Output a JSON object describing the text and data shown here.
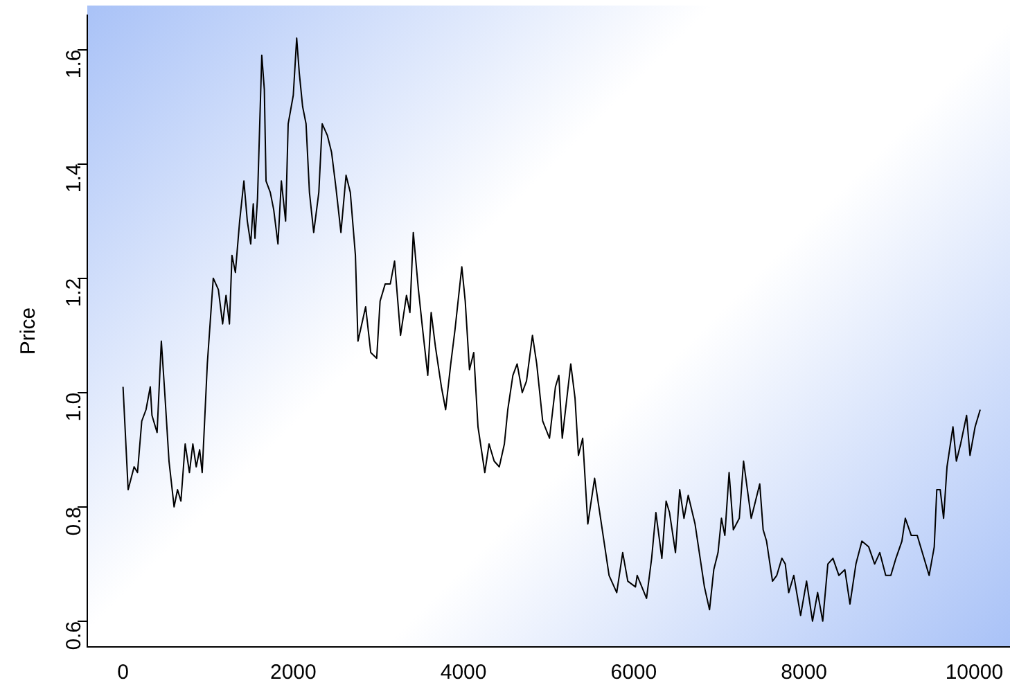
{
  "chart_data": {
    "type": "line",
    "ylabel": "Price",
    "xlim": [
      -420,
      10420
    ],
    "ylim": [
      0.555,
      1.66
    ],
    "xticks": [
      0,
      2000,
      4000,
      6000,
      8000,
      10000
    ],
    "yticks": [
      0.6,
      0.8,
      {
        "value": 1,
        "label": "1.0"
      },
      1.2,
      1.4,
      1.6
    ],
    "grid": false,
    "legend": false,
    "marker": "none",
    "line_style": "solid",
    "x": [
      0,
      60,
      130,
      170,
      220,
      270,
      320,
      340,
      400,
      450,
      490,
      540,
      600,
      640,
      680,
      730,
      780,
      820,
      860,
      900,
      930,
      990,
      1060,
      1120,
      1170,
      1210,
      1250,
      1280,
      1320,
      1370,
      1420,
      1460,
      1500,
      1530,
      1550,
      1580,
      1630,
      1660,
      1680,
      1730,
      1770,
      1820,
      1860,
      1910,
      1940,
      2000,
      2040,
      2070,
      2110,
      2150,
      2190,
      2240,
      2300,
      2340,
      2400,
      2450,
      2500,
      2560,
      2620,
      2670,
      2730,
      2760,
      2850,
      2910,
      2980,
      3020,
      3080,
      3140,
      3190,
      3260,
      3330,
      3370,
      3410,
      3470,
      3520,
      3580,
      3620,
      3670,
      3740,
      3790,
      3850,
      3900,
      3980,
      4020,
      4070,
      4120,
      4170,
      4250,
      4300,
      4360,
      4420,
      4480,
      4520,
      4580,
      4630,
      4690,
      4740,
      4810,
      4860,
      4930,
      5010,
      5080,
      5120,
      5160,
      5260,
      5310,
      5350,
      5400,
      5460,
      5540,
      5630,
      5710,
      5800,
      5870,
      5930,
      6020,
      6040,
      6150,
      6210,
      6260,
      6330,
      6380,
      6420,
      6490,
      6540,
      6590,
      6640,
      6720,
      6780,
      6830,
      6890,
      6940,
      6990,
      7030,
      7070,
      7120,
      7170,
      7240,
      7290,
      7380,
      7430,
      7480,
      7520,
      7560,
      7630,
      7680,
      7740,
      7780,
      7820,
      7880,
      7960,
      8030,
      8100,
      8160,
      8220,
      8280,
      8340,
      8410,
      8480,
      8540,
      8610,
      8680,
      8760,
      8830,
      8890,
      8960,
      9020,
      9080,
      9150,
      9190,
      9260,
      9330,
      9410,
      9470,
      9530,
      9560,
      9600,
      9640,
      9680,
      9750,
      9790,
      9840,
      9910,
      9950,
      10010,
      10070
    ],
    "series": [
      {
        "color": "#000000",
        "values": [
          1.01,
          0.83,
          0.87,
          0.86,
          0.95,
          0.97,
          1.01,
          0.96,
          0.93,
          1.09,
          1.0,
          0.88,
          0.8,
          0.83,
          0.81,
          0.91,
          0.86,
          0.91,
          0.87,
          0.9,
          0.86,
          1.05,
          1.2,
          1.18,
          1.12,
          1.17,
          1.12,
          1.24,
          1.21,
          1.3,
          1.37,
          1.3,
          1.26,
          1.33,
          1.27,
          1.34,
          1.59,
          1.53,
          1.37,
          1.35,
          1.32,
          1.26,
          1.37,
          1.3,
          1.47,
          1.52,
          1.62,
          1.56,
          1.5,
          1.47,
          1.35,
          1.28,
          1.35,
          1.47,
          1.45,
          1.42,
          1.36,
          1.28,
          1.38,
          1.35,
          1.24,
          1.09,
          1.15,
          1.07,
          1.06,
          1.16,
          1.19,
          1.19,
          1.23,
          1.1,
          1.17,
          1.14,
          1.28,
          1.18,
          1.11,
          1.03,
          1.14,
          1.08,
          1.01,
          0.97,
          1.05,
          1.11,
          1.22,
          1.16,
          1.04,
          1.07,
          0.94,
          0.86,
          0.91,
          0.88,
          0.87,
          0.91,
          0.97,
          1.03,
          1.05,
          1.0,
          1.02,
          1.1,
          1.05,
          0.95,
          0.92,
          1.01,
          1.03,
          0.92,
          1.05,
          0.99,
          0.89,
          0.92,
          0.77,
          0.85,
          0.76,
          0.68,
          0.65,
          0.72,
          0.67,
          0.66,
          0.68,
          0.64,
          0.71,
          0.79,
          0.71,
          0.81,
          0.79,
          0.72,
          0.83,
          0.78,
          0.82,
          0.77,
          0.71,
          0.66,
          0.62,
          0.69,
          0.72,
          0.78,
          0.75,
          0.86,
          0.76,
          0.78,
          0.88,
          0.78,
          0.81,
          0.84,
          0.76,
          0.74,
          0.67,
          0.68,
          0.71,
          0.7,
          0.65,
          0.68,
          0.61,
          0.67,
          0.6,
          0.65,
          0.6,
          0.7,
          0.71,
          0.68,
          0.69,
          0.63,
          0.7,
          0.74,
          0.73,
          0.7,
          0.72,
          0.68,
          0.68,
          0.71,
          0.74,
          0.78,
          0.75,
          0.75,
          0.71,
          0.68,
          0.73,
          0.83,
          0.83,
          0.78,
          0.87,
          0.94,
          0.88,
          0.91,
          0.96,
          0.89,
          0.94,
          0.97
        ]
      }
    ]
  }
}
